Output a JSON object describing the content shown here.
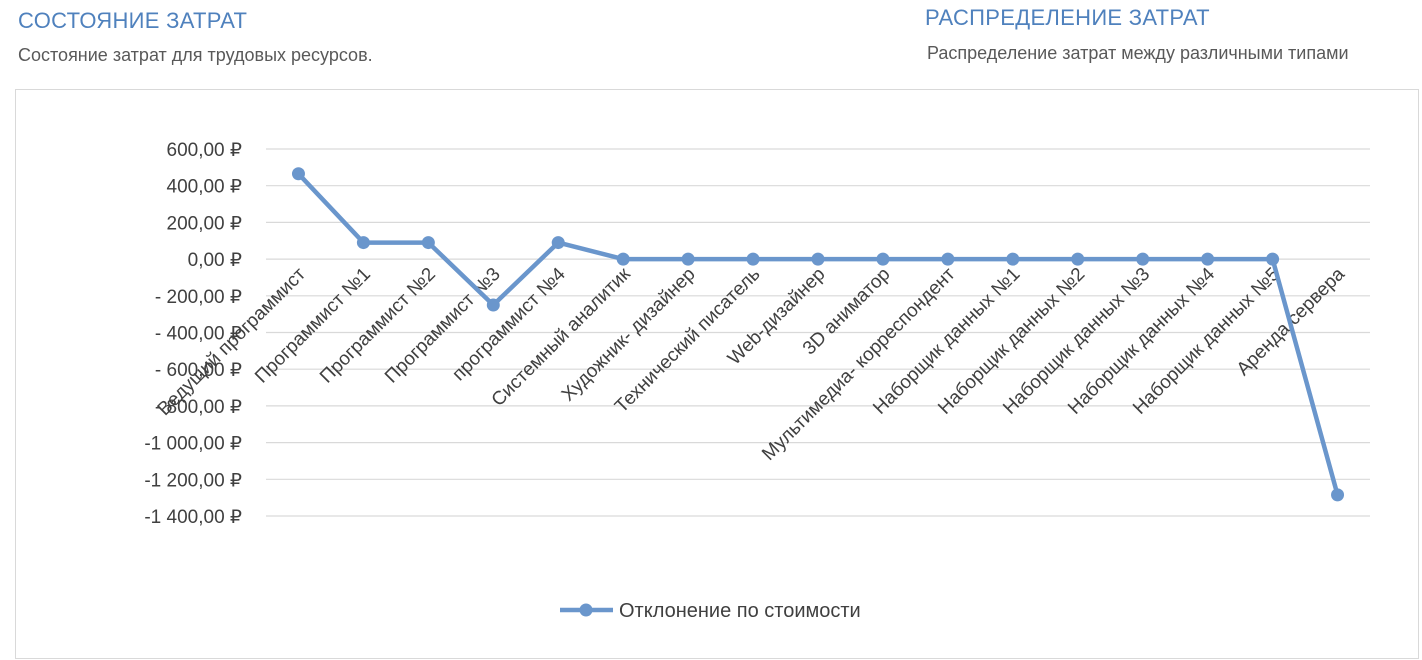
{
  "header": {
    "left_title": "СОСТОЯНИЕ ЗАТРАТ",
    "left_subtitle": "Состояние затрат для трудовых ресурсов.",
    "right_title": "РАСПРЕДЕЛЕНИЕ ЗАТРАТ",
    "right_subtitle": "Распределение затрат между различными типами"
  },
  "chart_data": {
    "type": "line",
    "title": "",
    "xlabel": "",
    "ylabel": "",
    "ylim": [
      -1400,
      600
    ],
    "yticks": [
      600,
      400,
      200,
      0,
      -200,
      -400,
      -600,
      -800,
      -1000,
      -1200,
      -1400
    ],
    "ytick_labels": [
      "600,00 ₽",
      "400,00 ₽",
      "200,00 ₽",
      "0,00 ₽",
      "- 200,00 ₽",
      "- 400,00 ₽",
      "- 600,00 ₽",
      "- 800,00 ₽",
      "-1 000,00 ₽",
      "-1 200,00 ₽",
      "-1 400,00 ₽"
    ],
    "grid": true,
    "legend_position": "bottom",
    "categories": [
      "Ведущий программист",
      "Программист №1",
      "Программист №2",
      "Программист №3",
      "программист №4",
      "Системный аналитик",
      "Художник- дизайнер",
      "Технический писатель",
      "Web-дизайнер",
      "3D аниматор",
      "Мультимедиа- корреспондент",
      "Наборщик данных №1",
      "Наборщик данных №2",
      "Наборщик данных №3",
      "Наборщик данных №4",
      "Наборщик данных №5",
      "Аренда сервера"
    ],
    "series": [
      {
        "name": "Отклонение по стоимости",
        "color": "#6a96cc",
        "values": [
          465,
          90,
          90,
          -250,
          90,
          0,
          0,
          0,
          0,
          0,
          0,
          0,
          0,
          0,
          0,
          0,
          -1285
        ]
      }
    ]
  }
}
